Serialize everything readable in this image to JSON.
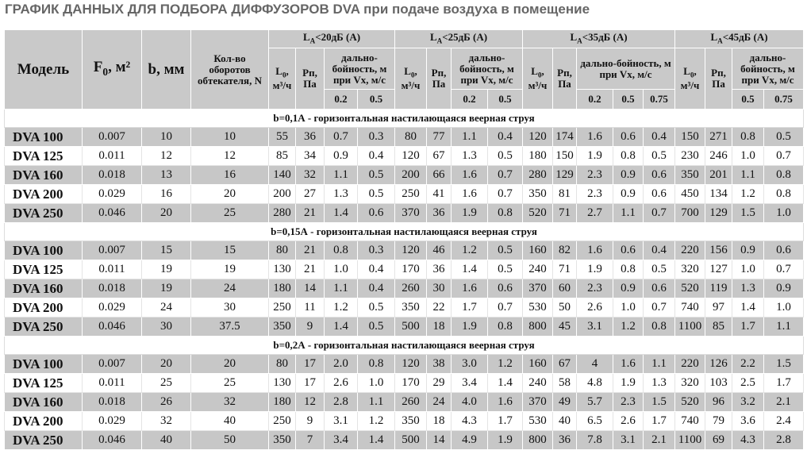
{
  "title": "ГРАФИК ДАННЫХ ДЛЯ ПОДБОРА ДИФФУЗОРОВ DVA при подаче воздуха в помещение",
  "table": {
    "head": {
      "model": "Модель",
      "f0": {
        "base": "F",
        "sub": "0",
        "rest": ", м²"
      },
      "b": "b, мм",
      "n": "Кол-во оборотов обтекателя, N",
      "groups": [
        {
          "label": {
            "base": "L",
            "sub": "A",
            "rest": "<20дБ (A)"
          },
          "l0": {
            "base": "L",
            "sub": "0",
            "rest": ", м³/ч"
          },
          "rp": "Рп, Па",
          "range": "дально-бойность, м при Vx, м/с",
          "speeds": [
            "0.2",
            "0.5"
          ]
        },
        {
          "label": {
            "base": "L",
            "sub": "A",
            "rest": "<25дБ (A)"
          },
          "l0": {
            "base": "L",
            "sub": "0",
            "rest": ", м³/ч"
          },
          "rp": "Рп, Па",
          "range": "дально-бойность, м при Vx, м/с",
          "speeds": [
            "0.2",
            "0.5"
          ]
        },
        {
          "label": {
            "base": "L",
            "sub": "A",
            "rest": "<35дБ (A)"
          },
          "l0": {
            "base": "L",
            "sub": "0",
            "rest": ", м³/ч"
          },
          "rp": "Рп, Па",
          "range": "дально-бойность, м при Vx, м/с",
          "speeds": [
            "0.2",
            "0.5",
            "0.75"
          ]
        },
        {
          "label": {
            "base": "L",
            "sub": "A",
            "rest": "<45дБ (A)"
          },
          "l0": {
            "base": "L",
            "sub": "0",
            "rest": ", м³/ч"
          },
          "rp": "Рп, Па",
          "range": "дально-бойность, м при Vx, м/с",
          "speeds": [
            "0.5",
            "0.75"
          ]
        }
      ]
    },
    "sections": [
      {
        "title": "b=0,1А  - горизонтальная настилающаяся веерная струя",
        "rows": [
          [
            "DVA 100",
            "0.007",
            "10",
            "10",
            "55",
            "36",
            "0.7",
            "0.3",
            "80",
            "77",
            "1.1",
            "0.4",
            "120",
            "174",
            "1.6",
            "0.6",
            "0.4",
            "150",
            "271",
            "0.8",
            "0.5"
          ],
          [
            "DVA 125",
            "0.011",
            "12",
            "12",
            "85",
            "34",
            "0.9",
            "0.4",
            "120",
            "67",
            "1.3",
            "0.5",
            "180",
            "150",
            "1.9",
            "0.8",
            "0.5",
            "230",
            "246",
            "1.0",
            "0.7"
          ],
          [
            "DVA 160",
            "0.018",
            "13",
            "16",
            "140",
            "32",
            "1.1",
            "0.5",
            "200",
            "66",
            "1.6",
            "0.7",
            "280",
            "129",
            "2.3",
            "0.9",
            "0.6",
            "350",
            "201",
            "1.1",
            "0.8"
          ],
          [
            "DVA 200",
            "0.029",
            "16",
            "20",
            "200",
            "27",
            "1.3",
            "0.5",
            "250",
            "41",
            "1.6",
            "0.7",
            "350",
            "81",
            "2.3",
            "0.9",
            "0.6",
            "450",
            "134",
            "1.2",
            "0.8"
          ],
          [
            "DVA 250",
            "0.046",
            "20",
            "25",
            "280",
            "21",
            "1.4",
            "0.6",
            "370",
            "36",
            "1.9",
            "0.8",
            "520",
            "71",
            "2.7",
            "1.1",
            "0.7",
            "700",
            "129",
            "1.5",
            "1.0"
          ]
        ]
      },
      {
        "title": "b=0,15А  - горизонтальная настилающаяся веерная струя",
        "rows": [
          [
            "DVA 100",
            "0.007",
            "15",
            "15",
            "80",
            "21",
            "0.8",
            "0.3",
            "120",
            "46",
            "1.2",
            "0.5",
            "160",
            "82",
            "1.6",
            "0.6",
            "0.4",
            "220",
            "156",
            "0.9",
            "0.6"
          ],
          [
            "DVA 125",
            "0.011",
            "19",
            "19",
            "130",
            "21",
            "1.0",
            "0.4",
            "170",
            "36",
            "1.4",
            "0.5",
            "240",
            "71",
            "1.9",
            "0.8",
            "0.5",
            "320",
            "127",
            "1.0",
            "0.7"
          ],
          [
            "DVA 160",
            "0.018",
            "19",
            "24",
            "180",
            "14",
            "1.1",
            "0.4",
            "260",
            "30",
            "1.6",
            "0.6",
            "370",
            "60",
            "2.3",
            "0.9",
            "0.6",
            "520",
            "119",
            "1.3",
            "0.9"
          ],
          [
            "DVA 200",
            "0.029",
            "24",
            "30",
            "250",
            "11",
            "1.2",
            "0.5",
            "350",
            "22",
            "1.7",
            "0.7",
            "530",
            "50",
            "2.6",
            "1.0",
            "0.7",
            "740",
            "97",
            "1.4",
            "1.0"
          ],
          [
            "DVA 250",
            "0.046",
            "30",
            "37.5",
            "350",
            "9",
            "1.4",
            "0.5",
            "500",
            "18",
            "1.9",
            "0.8",
            "800",
            "45",
            "3.1",
            "1.2",
            "0.8",
            "1100",
            "85",
            "1.7",
            "1.1"
          ]
        ]
      },
      {
        "title": "b=0,2А  - горизонтальная настилающаяся веерная струя",
        "rows": [
          [
            "DVA 100",
            "0.007",
            "20",
            "20",
            "80",
            "17",
            "2.0",
            "0.8",
            "120",
            "38",
            "3.0",
            "1.2",
            "160",
            "67",
            "4",
            "1.6",
            "1.1",
            "220",
            "126",
            "2.2",
            "1.5"
          ],
          [
            "DVA 125",
            "0.011",
            "25",
            "25",
            "130",
            "17",
            "2.6",
            "1.0",
            "170",
            "29",
            "3.4",
            "1.4",
            "240",
            "58",
            "4.8",
            "1.9",
            "1.3",
            "320",
            "103",
            "2.5",
            "1.7"
          ],
          [
            "DVA 160",
            "0.018",
            "26",
            "32",
            "180",
            "12",
            "2.8",
            "1.1",
            "260",
            "24",
            "4.0",
            "1.6",
            "370",
            "49",
            "5.7",
            "2.3",
            "1.5",
            "520",
            "96",
            "3.2",
            "2.1"
          ],
          [
            "DVA 200",
            "0.029",
            "32",
            "40",
            "250",
            "9",
            "3.1",
            "1.2",
            "350",
            "18",
            "4.3",
            "1.7",
            "530",
            "40",
            "6.5",
            "2.6",
            "1.7",
            "740",
            "79",
            "3.6",
            "2.4"
          ],
          [
            "DVA 250",
            "0.046",
            "40",
            "50",
            "350",
            "7",
            "3.4",
            "1.4",
            "500",
            "14",
            "4.9",
            "1.9",
            "800",
            "36",
            "7.8",
            "3.1",
            "2.1",
            "1100",
            "69",
            "4.3",
            "2.8"
          ]
        ]
      }
    ]
  }
}
